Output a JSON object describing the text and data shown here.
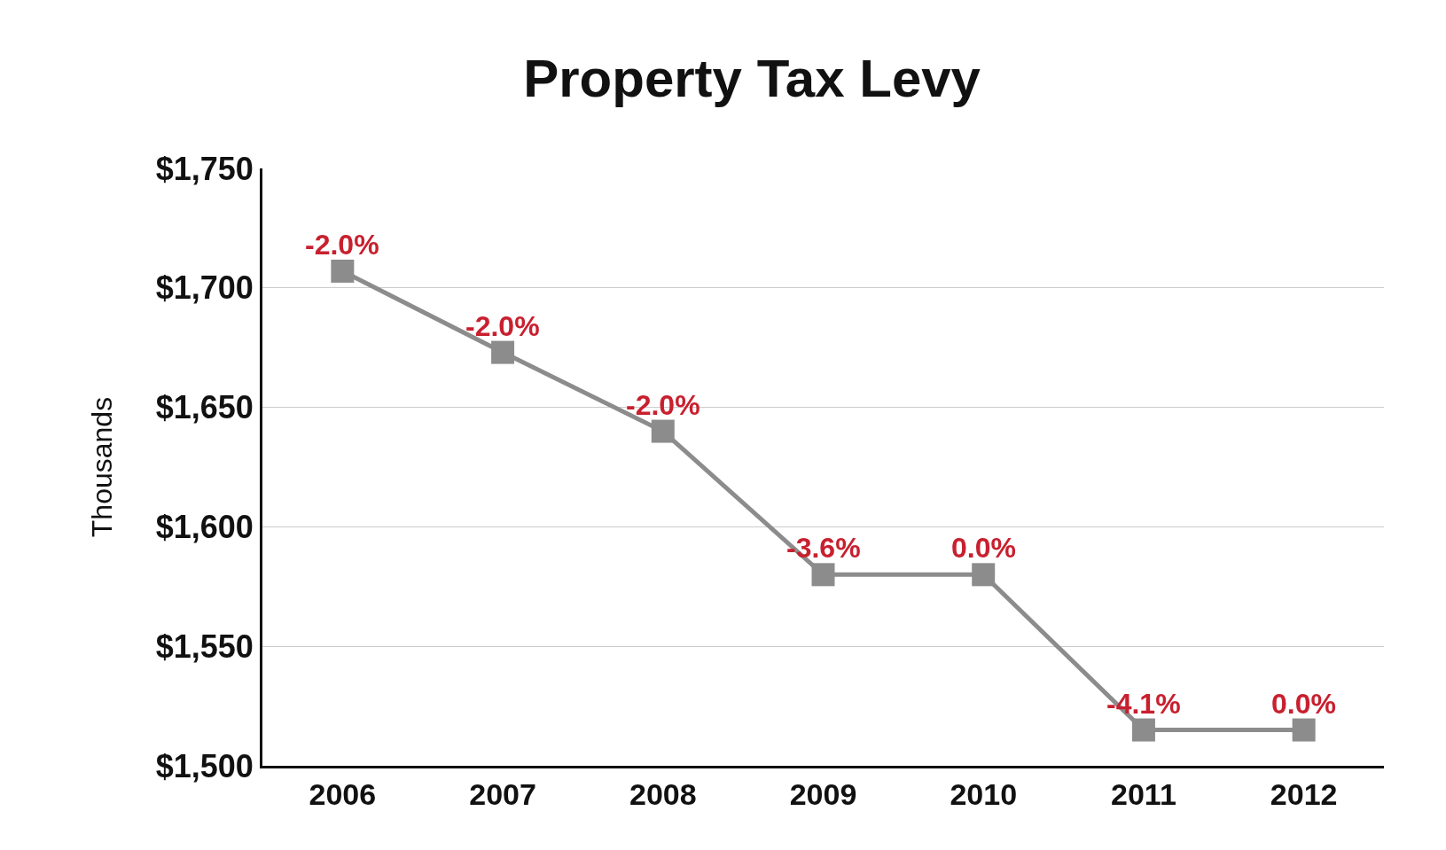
{
  "chart_data": {
    "type": "line",
    "title": "Property Tax Levy",
    "ylabel": "Thousands",
    "categories": [
      "2006",
      "2007",
      "2008",
      "2009",
      "2010",
      "2011",
      "2012"
    ],
    "series": [
      {
        "color": "#8c8c8c",
        "values": [
          1707,
          1673,
          1640,
          1580,
          1580,
          1515,
          1515
        ]
      }
    ],
    "annotations": [
      {
        "text": "-2.0%",
        "x": "2006",
        "y": 1707
      },
      {
        "text": "-2.0%",
        "x": "2007",
        "y": 1673
      },
      {
        "text": "-2.0%",
        "x": "2008",
        "y": 1640
      },
      {
        "text": "-3.6%",
        "x": "2009",
        "y": 1580
      },
      {
        "text": "0.0%",
        "x": "2010",
        "y": 1580
      },
      {
        "text": "-4.1%",
        "x": "2011",
        "y": 1515
      },
      {
        "text": "0.0%",
        "x": "2012",
        "y": 1515
      }
    ],
    "ylim": [
      1500,
      1750
    ],
    "yticks": [
      {
        "value": 1500,
        "label": "$1,500"
      },
      {
        "value": 1550,
        "label": "$1,550"
      },
      {
        "value": 1600,
        "label": "$1,600"
      },
      {
        "value": 1650,
        "label": "$1,650"
      },
      {
        "value": 1700,
        "label": "$1,700"
      },
      {
        "value": 1750,
        "label": "$1,750"
      }
    ],
    "grid": "y",
    "marker": "square",
    "line_style": "solid",
    "legend": false
  }
}
